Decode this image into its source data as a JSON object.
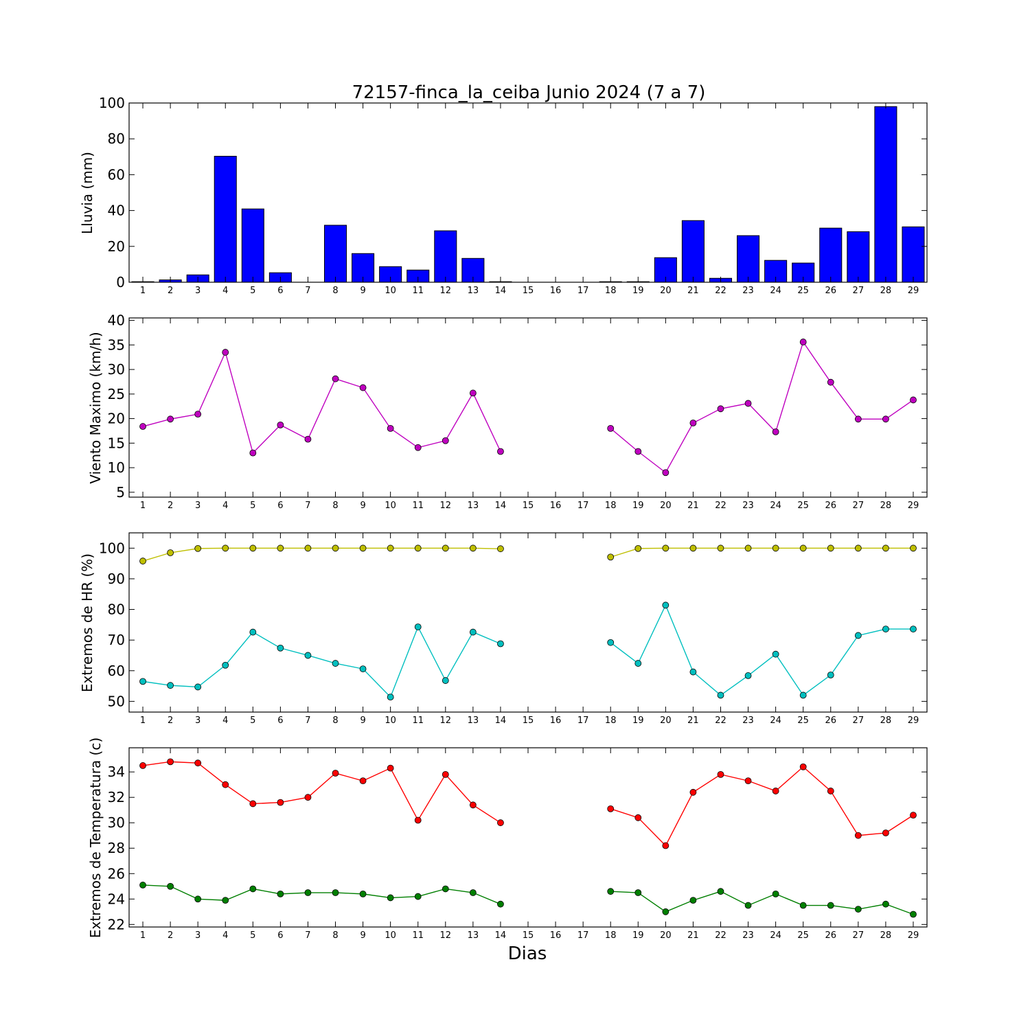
{
  "title": "72157-finca_la_ceiba Junio 2024  (7 a 7)",
  "xlabel": "Dias",
  "x_ticks": [
    "1",
    "2",
    "3",
    "4",
    "5",
    "6",
    "7",
    "8",
    "9",
    "10",
    "11",
    "12",
    "13",
    "14",
    "15",
    "16",
    "17",
    "18",
    "19",
    "20",
    "21",
    "22",
    "23",
    "24",
    "25",
    "26",
    "27",
    "28",
    "29"
  ],
  "colors": {
    "lluvia": "#0000ff",
    "viento": "#bf00bf",
    "hr_max": "#bfbf00",
    "hr_min": "#00bfbf",
    "temp_max": "#ff0000",
    "temp_min": "#007f00"
  },
  "chart_data": [
    {
      "type": "bar",
      "ylabel": "Lluvia (mm)",
      "ylim": [
        0,
        100
      ],
      "yticks": [
        0,
        20,
        40,
        60,
        80,
        100
      ],
      "x": [
        1,
        2,
        3,
        4,
        5,
        6,
        7,
        8,
        9,
        10,
        11,
        12,
        13,
        14,
        15,
        16,
        17,
        18,
        19,
        20,
        21,
        22,
        23,
        24,
        25,
        26,
        27,
        28,
        29
      ],
      "values": [
        0.3,
        1.3,
        4.1,
        70.3,
        40.9,
        5.3,
        0,
        31.8,
        16.0,
        8.7,
        6.8,
        28.7,
        13.3,
        0.3,
        0,
        0,
        0,
        0.3,
        0.3,
        13.7,
        34.4,
        2.2,
        26.0,
        12.2,
        10.7,
        30.2,
        28.2,
        98.0,
        30.9
      ]
    },
    {
      "type": "line",
      "ylabel": "Viento Maximo (km/h)",
      "ylim": [
        4,
        40.5
      ],
      "yticks": [
        5,
        10,
        15,
        20,
        25,
        30,
        35,
        40
      ],
      "x": [
        1,
        2,
        3,
        4,
        5,
        6,
        7,
        8,
        9,
        10,
        11,
        12,
        13,
        14,
        15,
        16,
        17,
        18,
        19,
        20,
        21,
        22,
        23,
        24,
        25,
        26,
        27,
        28,
        29
      ],
      "series": [
        {
          "key": "viento",
          "values": [
            18.4,
            19.9,
            20.9,
            33.5,
            13.0,
            18.7,
            15.8,
            28.1,
            26.3,
            18.0,
            14.1,
            15.5,
            25.2,
            13.3,
            null,
            null,
            null,
            18.0,
            13.3,
            9.0,
            19.1,
            22.0,
            23.1,
            17.3,
            35.6,
            27.4,
            19.9,
            19.9,
            23.8
          ]
        }
      ]
    },
    {
      "type": "line",
      "ylabel": "Extremos de HR (%)",
      "ylim": [
        46.5,
        105
      ],
      "yticks": [
        50,
        60,
        70,
        80,
        90,
        100
      ],
      "x": [
        1,
        2,
        3,
        4,
        5,
        6,
        7,
        8,
        9,
        10,
        11,
        12,
        13,
        14,
        15,
        16,
        17,
        18,
        19,
        20,
        21,
        22,
        23,
        24,
        25,
        26,
        27,
        28,
        29
      ],
      "series": [
        {
          "key": "hr_max",
          "values": [
            95.8,
            98.5,
            99.9,
            100,
            100,
            100,
            100,
            100,
            100,
            100,
            100,
            100,
            100,
            99.8,
            null,
            null,
            null,
            97.1,
            99.9,
            100,
            100,
            100,
            100,
            100,
            100,
            100,
            100,
            100,
            100
          ]
        },
        {
          "key": "hr_min",
          "values": [
            56.5,
            55.2,
            54.7,
            61.8,
            72.6,
            67.4,
            65.0,
            62.4,
            60.6,
            51.4,
            74.3,
            56.8,
            72.6,
            68.8,
            null,
            null,
            null,
            69.2,
            62.4,
            81.4,
            59.6,
            52.0,
            58.4,
            65.4,
            52.0,
            58.6,
            71.5,
            73.6,
            73.6
          ]
        }
      ]
    },
    {
      "type": "line",
      "ylabel": "Extremos de Temperatura (c)",
      "ylim": [
        21.8,
        35.9
      ],
      "yticks": [
        22,
        24,
        26,
        28,
        30,
        32,
        34
      ],
      "x": [
        1,
        2,
        3,
        4,
        5,
        6,
        7,
        8,
        9,
        10,
        11,
        12,
        13,
        14,
        15,
        16,
        17,
        18,
        19,
        20,
        21,
        22,
        23,
        24,
        25,
        26,
        27,
        28,
        29
      ],
      "series": [
        {
          "key": "temp_max",
          "values": [
            34.5,
            34.8,
            34.7,
            33.0,
            31.5,
            31.6,
            32.0,
            33.9,
            33.3,
            34.3,
            30.2,
            33.8,
            31.4,
            30.0,
            null,
            null,
            null,
            31.1,
            30.4,
            28.2,
            32.4,
            33.8,
            33.3,
            32.5,
            34.4,
            32.5,
            29.0,
            29.2,
            30.6
          ]
        },
        {
          "key": "temp_min",
          "values": [
            25.1,
            25.0,
            24.0,
            23.9,
            24.8,
            24.4,
            24.5,
            24.5,
            24.4,
            24.1,
            24.2,
            24.8,
            24.5,
            23.6,
            null,
            null,
            null,
            24.6,
            24.5,
            23.0,
            23.9,
            24.6,
            23.5,
            24.4,
            23.5,
            23.5,
            23.2,
            23.6,
            22.8
          ]
        }
      ]
    }
  ]
}
